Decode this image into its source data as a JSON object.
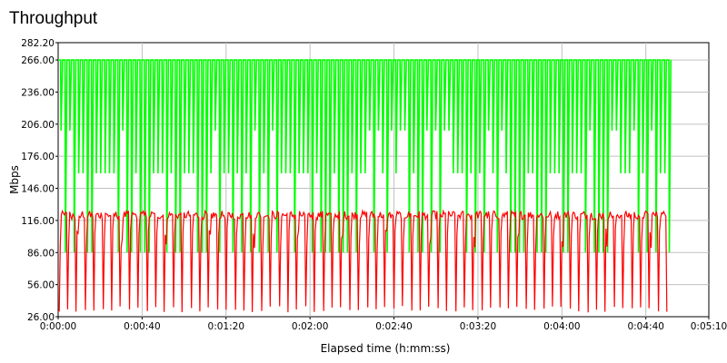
{
  "chart_data": {
    "type": "line",
    "title": "Throughput",
    "xlabel": "Elapsed time (h:mm:ss)",
    "ylabel": "Mbps",
    "xlim": [
      "0:00:00",
      "0:05:10"
    ],
    "ylim": [
      26.0,
      282.2
    ],
    "yticks": [
      "26.00",
      "56.00",
      "86.00",
      "116.00",
      "146.00",
      "176.00",
      "206.00",
      "236.00",
      "266.00",
      "282.20"
    ],
    "xticks": [
      "0:00:00",
      "0:00:40",
      "0:01:20",
      "0:02:00",
      "0:02:40",
      "0:03:20",
      "0:04:00",
      "0:04:40",
      "0:05:10"
    ],
    "grid": true,
    "background": "#ffffff",
    "series": [
      {
        "color": "#00ff00",
        "pattern": "rapid oscillation between about 86 and 266 Mbps, frequent drops to about 200, 160 and 86 Mbps",
        "x_range_seconds": [
          0,
          290
        ],
        "high": 266,
        "low": 86
      },
      {
        "color": "#ff0000",
        "pattern": "hovers around 118-126 Mbps with periodic spikes down to about 30 Mbps",
        "x_range_seconds": [
          0,
          290
        ],
        "base": 121,
        "min": 30
      }
    ]
  }
}
